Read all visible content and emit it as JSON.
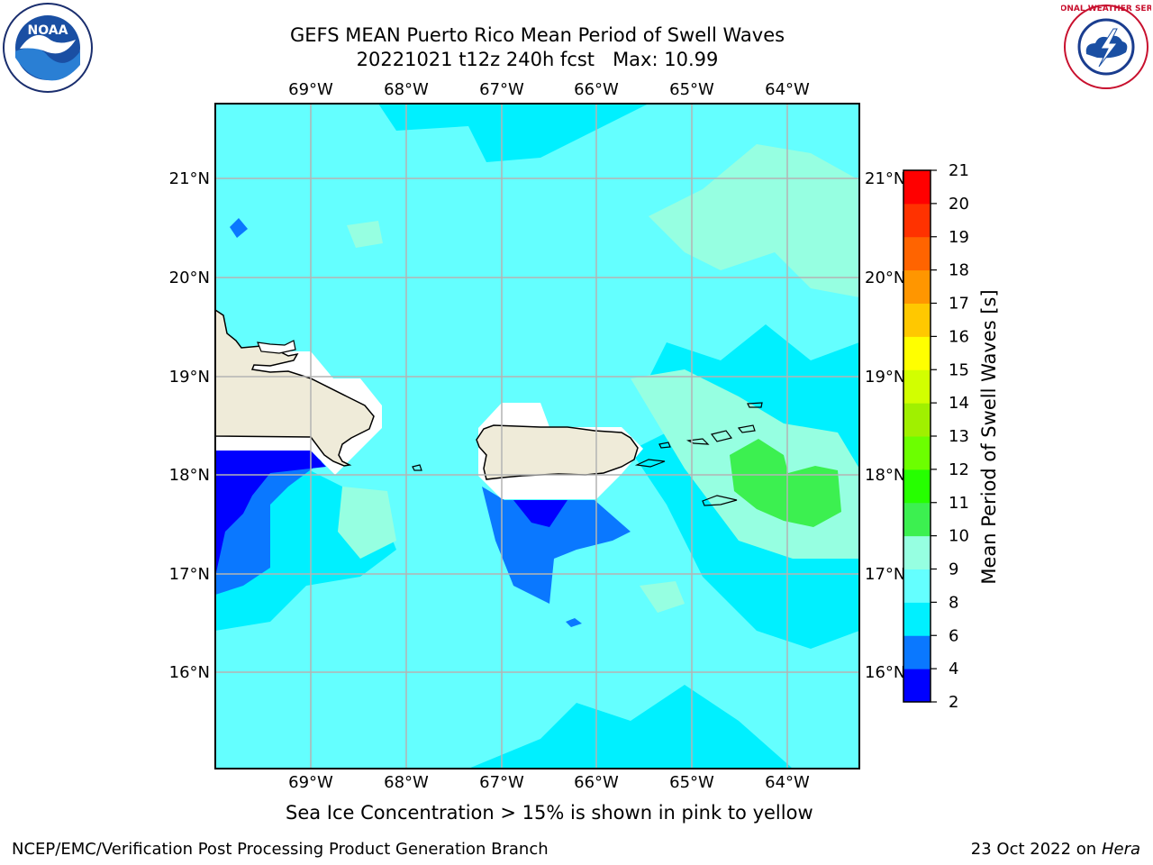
{
  "header": {
    "title_line1": "GEFS MEAN Puerto Rico Mean Period of Swell Waves",
    "title_line2": "20221021 t12z 240h fcst   Max: 10.99"
  },
  "logos": {
    "left": "noaa-logo",
    "left_text": "NOAA",
    "right": "nws-logo",
    "right_text": "NATIONAL WEATHER SERVICE"
  },
  "map": {
    "lon_labels": [
      "69°W",
      "68°W",
      "67°W",
      "66°W",
      "65°W",
      "64°W"
    ],
    "lat_labels": [
      "21°N",
      "20°N",
      "19°N",
      "18°N",
      "17°N",
      "16°N"
    ],
    "gridlines": true,
    "lon_range": [
      -70.0,
      -63.25
    ],
    "lat_range": [
      15.0,
      21.75
    ],
    "fill_colors": {
      "land": "#efebd9",
      "gridline": "#b4b4b4"
    }
  },
  "colorbar": {
    "label": "Mean Period of Swell Waves [s]",
    "ticks": [
      "2",
      "4",
      "6",
      "8",
      "9",
      "10",
      "11",
      "12",
      "13",
      "14",
      "15",
      "16",
      "17",
      "18",
      "19",
      "20",
      "21"
    ],
    "colors": [
      "#0000ff",
      "#0a78ff",
      "#00f0ff",
      "#64ffff",
      "#96ffe1",
      "#3cf050",
      "#26ff00",
      "#6cff00",
      "#a0f000",
      "#d2ff00",
      "#ffff00",
      "#ffc800",
      "#ff9600",
      "#ff6400",
      "#ff3200",
      "#ff0000"
    ]
  },
  "caption": "Sea Ice Concentration > 15% is shown in pink to yellow",
  "footer": {
    "left": "NCEP/EMC/Verification Post Processing Product Generation Branch",
    "right_prefix": "23 Oct 2022 on ",
    "right_host": "Hera"
  }
}
